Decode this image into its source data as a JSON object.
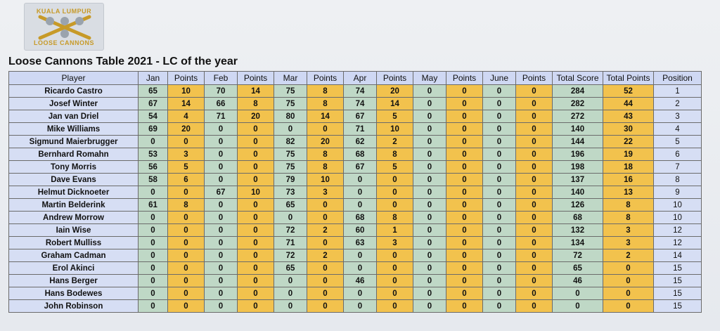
{
  "logo": {
    "top_text": "KUALA LUMPUR",
    "bottom_text": "LOOSE CANNONS"
  },
  "title": "Loose Cannons Table 2021 - LC of the year",
  "headers": [
    "Player",
    "Jan",
    "Points",
    "Feb",
    "Points",
    "Mar",
    "Points",
    "Apr",
    "Points",
    "May",
    "Points",
    "June",
    "Points",
    "Total Score",
    "Total Points",
    "Position"
  ],
  "rows": [
    [
      "Ricardo Castro",
      "65",
      "10",
      "70",
      "14",
      "75",
      "8",
      "74",
      "20",
      "0",
      "0",
      "0",
      "0",
      "284",
      "52",
      "1"
    ],
    [
      "Josef Winter",
      "67",
      "14",
      "66",
      "8",
      "75",
      "8",
      "74",
      "14",
      "0",
      "0",
      "0",
      "0",
      "282",
      "44",
      "2"
    ],
    [
      "Jan van Driel",
      "54",
      "4",
      "71",
      "20",
      "80",
      "14",
      "67",
      "5",
      "0",
      "0",
      "0",
      "0",
      "272",
      "43",
      "3"
    ],
    [
      "Mike Williams",
      "69",
      "20",
      "0",
      "0",
      "0",
      "0",
      "71",
      "10",
      "0",
      "0",
      "0",
      "0",
      "140",
      "30",
      "4"
    ],
    [
      "Sigmund Maierbrugger",
      "0",
      "0",
      "0",
      "0",
      "82",
      "20",
      "62",
      "2",
      "0",
      "0",
      "0",
      "0",
      "144",
      "22",
      "5"
    ],
    [
      "Bernhard Romahn",
      "53",
      "3",
      "0",
      "0",
      "75",
      "8",
      "68",
      "8",
      "0",
      "0",
      "0",
      "0",
      "196",
      "19",
      "6"
    ],
    [
      "Tony Morris",
      "56",
      "5",
      "0",
      "0",
      "75",
      "8",
      "67",
      "5",
      "0",
      "0",
      "0",
      "0",
      "198",
      "18",
      "7"
    ],
    [
      "Dave Evans",
      "58",
      "6",
      "0",
      "0",
      "79",
      "10",
      "0",
      "0",
      "0",
      "0",
      "0",
      "0",
      "137",
      "16",
      "8"
    ],
    [
      "Helmut Dicknoeter",
      "0",
      "0",
      "67",
      "10",
      "73",
      "3",
      "0",
      "0",
      "0",
      "0",
      "0",
      "0",
      "140",
      "13",
      "9"
    ],
    [
      "Martin Belderink",
      "61",
      "8",
      "0",
      "0",
      "65",
      "0",
      "0",
      "0",
      "0",
      "0",
      "0",
      "0",
      "126",
      "8",
      "10"
    ],
    [
      "Andrew Morrow",
      "0",
      "0",
      "0",
      "0",
      "0",
      "0",
      "68",
      "8",
      "0",
      "0",
      "0",
      "0",
      "68",
      "8",
      "10"
    ],
    [
      "Iain Wise",
      "0",
      "0",
      "0",
      "0",
      "72",
      "2",
      "60",
      "1",
      "0",
      "0",
      "0",
      "0",
      "132",
      "3",
      "12"
    ],
    [
      "Robert Mulliss",
      "0",
      "0",
      "0",
      "0",
      "71",
      "0",
      "63",
      "3",
      "0",
      "0",
      "0",
      "0",
      "134",
      "3",
      "12"
    ],
    [
      "Graham Cadman",
      "0",
      "0",
      "0",
      "0",
      "72",
      "2",
      "0",
      "0",
      "0",
      "0",
      "0",
      "0",
      "72",
      "2",
      "14"
    ],
    [
      "Erol Akinci",
      "0",
      "0",
      "0",
      "0",
      "65",
      "0",
      "0",
      "0",
      "0",
      "0",
      "0",
      "0",
      "65",
      "0",
      "15"
    ],
    [
      "Hans Berger",
      "0",
      "0",
      "0",
      "0",
      "0",
      "0",
      "46",
      "0",
      "0",
      "0",
      "0",
      "0",
      "46",
      "0",
      "15"
    ],
    [
      "Hans Bodewes",
      "0",
      "0",
      "0",
      "0",
      "0",
      "0",
      "0",
      "0",
      "0",
      "0",
      "0",
      "0",
      "0",
      "0",
      "15"
    ],
    [
      "John Robinson",
      "0",
      "0",
      "0",
      "0",
      "0",
      "0",
      "0",
      "0",
      "0",
      "0",
      "0",
      "0",
      "0",
      "0",
      "15"
    ]
  ],
  "colors": {
    "header": "#cfd8f3",
    "score": "#bfd8c6",
    "points": "#f2c24d",
    "player": "#d6def4"
  }
}
